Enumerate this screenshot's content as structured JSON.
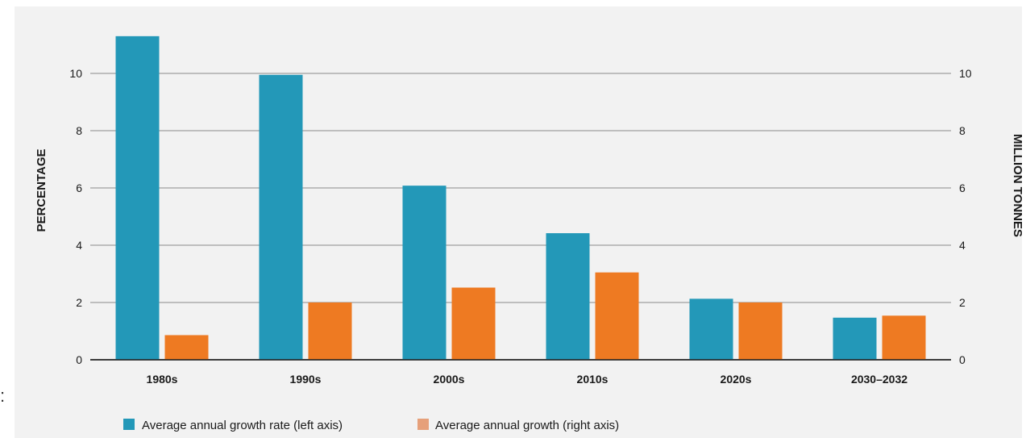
{
  "chart_data": {
    "type": "bar",
    "categories": [
      "1980s",
      "1990s",
      "2000s",
      "2010s",
      "2020s",
      "2030–2032"
    ],
    "series": [
      {
        "name": "Average annual growth rate (left axis)",
        "axis": "left",
        "color": "#2398b8",
        "values": [
          11.3,
          9.95,
          6.08,
          4.42,
          2.13,
          1.47
        ]
      },
      {
        "name": "Average annual growth (right axis)",
        "axis": "right",
        "color": "#ee7a22",
        "values": [
          0.86,
          2.0,
          2.52,
          3.05,
          2.0,
          1.54
        ]
      }
    ],
    "ylabel": "PERCENTAGE",
    "y2label": "MILLION TONNES",
    "ylim": [
      0,
      11.5
    ],
    "y2lim": [
      0,
      11.5
    ],
    "yticks": [
      "0",
      "2",
      "4",
      "6",
      "8",
      "10"
    ],
    "y2ticks": [
      "0",
      "2",
      "4",
      "6",
      "8",
      "10"
    ],
    "grid": true,
    "legend_position": "bottom-left",
    "legend": [
      {
        "label": "Average annual growth rate (left axis)",
        "swatch": "#2398b8"
      },
      {
        "label": "Average annual growth (right axis)",
        "swatch": "#e6a07a"
      }
    ]
  }
}
